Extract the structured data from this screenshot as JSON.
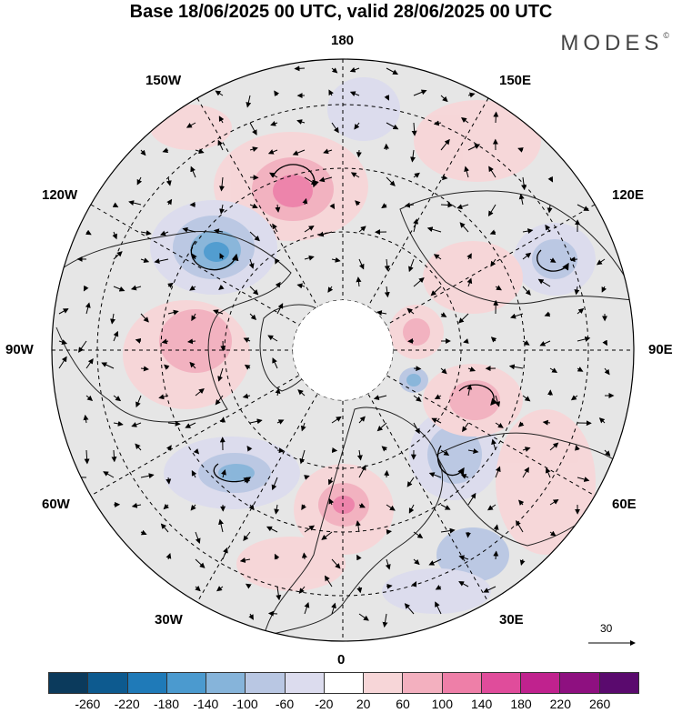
{
  "title": "Base 18/06/2025 00 UTC, valid 28/06/2025 00 UTC",
  "brand": "MODES",
  "brand_mark": "©",
  "longitude_labels": {
    "top": "180",
    "bottom": "0",
    "left": "90W",
    "right": "90E",
    "upper_left_1": "150W",
    "upper_left_2": "120W",
    "lower_left_1": "60W",
    "lower_left_2": "30W",
    "upper_right_1": "150E",
    "upper_right_2": "120E",
    "lower_right_1": "60E",
    "lower_right_2": "30E"
  },
  "wind_reference_vector": "30",
  "colorbar": {
    "colors": [
      "#0b3a5c",
      "#0d5a8f",
      "#1f7ab8",
      "#4b9acf",
      "#86b4da",
      "#b9c7e3",
      "#dcdcee",
      "#ffffff",
      "#f7d6d8",
      "#f3b0bf",
      "#ee7fa8",
      "#e04c9b",
      "#c0228e",
      "#8e1080",
      "#5a0a6e"
    ],
    "ticks": [
      "-260",
      "-220",
      "-180",
      "-140",
      "-100",
      "-60",
      "-20",
      "20",
      "60",
      "100",
      "140",
      "180",
      "220",
      "260"
    ]
  },
  "icons": {
    "reference_arrow": "arrow-right-icon",
    "wind_vectors": "wind-arrow-icon"
  }
}
